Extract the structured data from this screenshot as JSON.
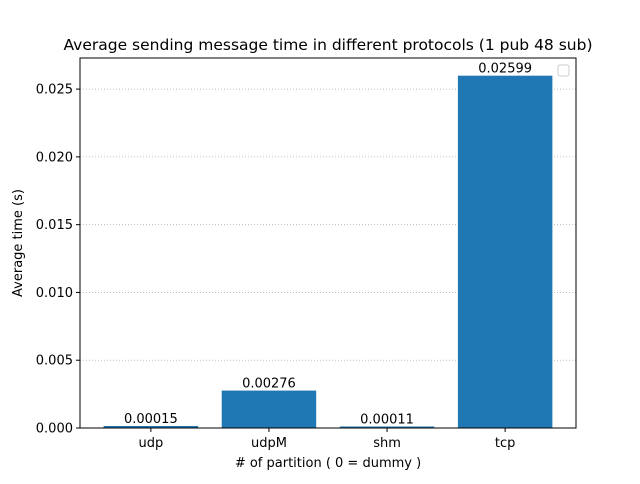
{
  "chart_data": {
    "type": "bar",
    "title": "Average sending message time in different protocols (1 pub 48 sub)",
    "xlabel": "# of partition ( 0 = dummy )",
    "ylabel": "Average time (s)",
    "categories": [
      "udp",
      "udpM",
      "shm",
      "tcp"
    ],
    "values": [
      0.00015,
      0.00276,
      0.00011,
      0.02599
    ],
    "data_labels": [
      "0.00015",
      "0.00276",
      "0.00011",
      "0.02599"
    ],
    "ylim": [
      0,
      0.027295
    ],
    "yticks": [
      0.0,
      0.005,
      0.01,
      0.015,
      0.02,
      0.025
    ],
    "ytick_labels": [
      "0.000",
      "0.005",
      "0.010",
      "0.015",
      "0.020",
      "0.025"
    ],
    "grid": "y-dotted",
    "legend": {
      "placement": "top-right",
      "entries": []
    },
    "colors": {
      "bar": "#1f77b4",
      "grid": "#b0b0b0",
      "axis": "#000000"
    }
  }
}
